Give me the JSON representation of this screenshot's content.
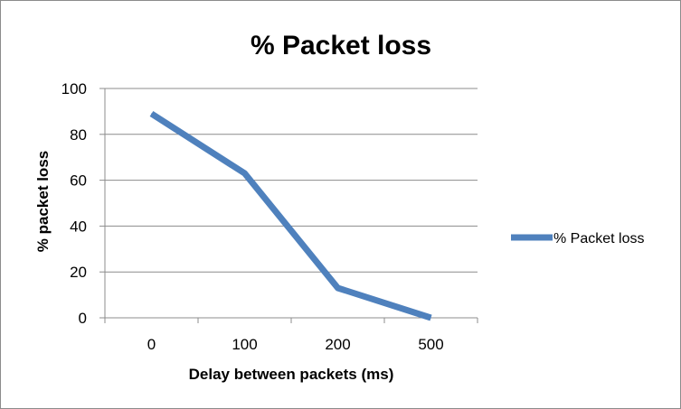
{
  "chart_data": {
    "type": "line",
    "title": "% Packet loss",
    "xlabel": "Delay between packets (ms)",
    "ylabel": "% packet loss",
    "categories": [
      "0",
      "100",
      "200",
      "500"
    ],
    "series": [
      {
        "name": "% Packet loss",
        "values": [
          89,
          63,
          13,
          0
        ],
        "color": "#4f81bd"
      }
    ],
    "ylim": [
      0,
      100
    ],
    "yticks": [
      "0",
      "20",
      "40",
      "60",
      "80",
      "100"
    ],
    "grid": "horizontal",
    "legend_position": "right"
  }
}
